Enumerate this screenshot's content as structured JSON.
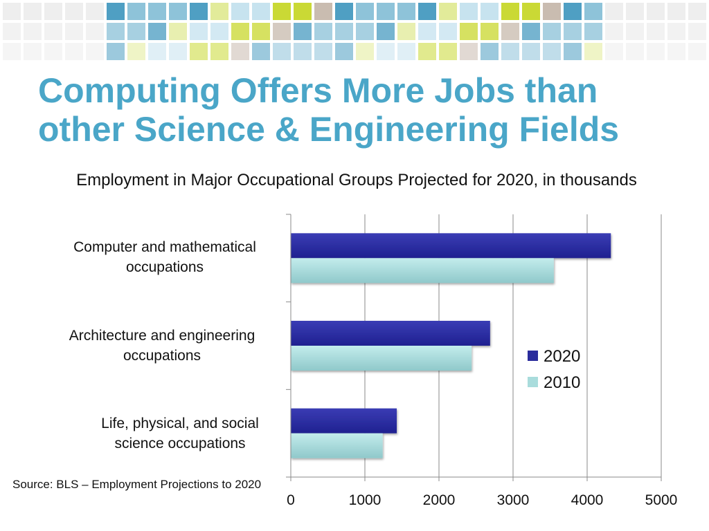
{
  "slide": {
    "title_line1": "Computing Offers More Jobs than",
    "title_line2": "other Science & Engineering Fields",
    "subtitle": "Employment in Major Occupational Groups Projected for 2020, in thousands",
    "source": "Source: BLS – Employment Projections to 2020"
  },
  "colors": {
    "title": "#4aa6c8",
    "series_2020": "#2a2c9c",
    "series_2010": "#a9dcdc",
    "mosaic": [
      "#c7e3ef",
      "#8ec3d9",
      "#4f9fc3",
      "#cad935",
      "#e2eb9a",
      "#c9bcb0",
      "#eeeeee"
    ]
  },
  "chart_data": {
    "type": "bar",
    "orientation": "horizontal",
    "categories": [
      "Computer and mathematical occupations",
      "Architecture and engineering occupations",
      "Life, physical, and social science occupations"
    ],
    "category_lines": [
      [
        "Computer and mathematical",
        "occupations"
      ],
      [
        "Architecture and engineering",
        "occupations"
      ],
      [
        "Life, physical, and social",
        "science occupations"
      ]
    ],
    "series": [
      {
        "name": "2020",
        "values": [
          4320,
          2690,
          1430
        ]
      },
      {
        "name": "2010",
        "values": [
          3550,
          2440,
          1240
        ]
      }
    ],
    "xlim": [
      0,
      5000
    ],
    "xticks": [
      "0",
      "1000",
      "2000",
      "3000",
      "4000",
      "5000"
    ],
    "grid": true,
    "legend_position": "right"
  }
}
